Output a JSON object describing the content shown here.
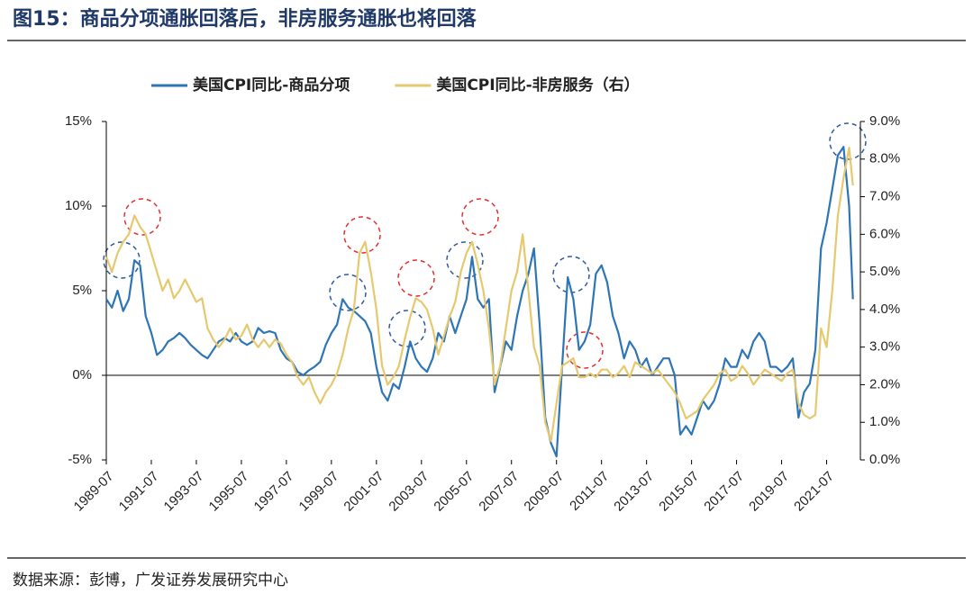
{
  "chart_data": {
    "type": "line",
    "title": "图15：商品分项通胀回落后，非房服务通胀也将回落",
    "source": "数据来源：彭博，广发证券发展研究中心",
    "x": [
      "1989-07",
      "1989-10",
      "1990-01",
      "1990-04",
      "1990-07",
      "1990-10",
      "1991-01",
      "1991-04",
      "1991-07",
      "1991-10",
      "1992-01",
      "1992-04",
      "1992-07",
      "1992-10",
      "1993-01",
      "1993-04",
      "1993-07",
      "1993-10",
      "1994-01",
      "1994-04",
      "1994-07",
      "1994-10",
      "1995-01",
      "1995-04",
      "1995-07",
      "1995-10",
      "1996-01",
      "1996-04",
      "1996-07",
      "1996-10",
      "1997-01",
      "1997-04",
      "1997-07",
      "1997-10",
      "1998-01",
      "1998-04",
      "1998-07",
      "1998-10",
      "1999-01",
      "1999-04",
      "1999-07",
      "1999-10",
      "2000-01",
      "2000-04",
      "2000-07",
      "2000-10",
      "2001-01",
      "2001-04",
      "2001-07",
      "2001-10",
      "2002-01",
      "2002-04",
      "2002-07",
      "2002-10",
      "2003-01",
      "2003-04",
      "2003-07",
      "2003-10",
      "2004-01",
      "2004-04",
      "2004-07",
      "2004-10",
      "2005-01",
      "2005-04",
      "2005-07",
      "2005-10",
      "2006-01",
      "2006-04",
      "2006-07",
      "2006-10",
      "2007-01",
      "2007-04",
      "2007-07",
      "2007-10",
      "2008-01",
      "2008-04",
      "2008-07",
      "2008-10",
      "2009-01",
      "2009-04",
      "2009-07",
      "2009-10",
      "2010-01",
      "2010-04",
      "2010-07",
      "2010-10",
      "2011-01",
      "2011-04",
      "2011-07",
      "2011-10",
      "2012-01",
      "2012-04",
      "2012-07",
      "2012-10",
      "2013-01",
      "2013-04",
      "2013-07",
      "2013-10",
      "2014-01",
      "2014-04",
      "2014-07",
      "2014-10",
      "2015-01",
      "2015-04",
      "2015-07",
      "2015-10",
      "2016-01",
      "2016-04",
      "2016-07",
      "2016-10",
      "2017-01",
      "2017-04",
      "2017-07",
      "2017-10",
      "2018-01",
      "2018-04",
      "2018-07",
      "2018-10",
      "2019-01",
      "2019-04",
      "2019-07",
      "2019-10",
      "2020-01",
      "2020-04",
      "2020-07",
      "2020-10",
      "2021-01",
      "2021-04",
      "2021-07",
      "2021-10",
      "2022-01",
      "2022-04",
      "2022-07",
      "2022-09"
    ],
    "series": [
      {
        "name": "美国CPI同比-商品分项",
        "color": "#2e75b6",
        "axis": "y",
        "values": [
          4.5,
          4.0,
          5.0,
          3.8,
          4.5,
          6.8,
          6.5,
          3.5,
          2.5,
          1.2,
          1.5,
          2.0,
          2.2,
          2.5,
          2.2,
          1.8,
          1.5,
          1.2,
          1.0,
          1.5,
          2.0,
          2.2,
          2.0,
          2.5,
          2.0,
          1.8,
          2.0,
          2.8,
          2.5,
          2.6,
          2.5,
          1.5,
          1.0,
          0.8,
          0.2,
          0.0,
          0.3,
          0.5,
          0.8,
          1.8,
          2.5,
          3.0,
          4.5,
          4.0,
          3.8,
          3.5,
          3.2,
          2.5,
          0.5,
          -1.0,
          -1.5,
          -0.5,
          -0.8,
          0.5,
          2.0,
          1.0,
          0.5,
          0.2,
          1.0,
          2.5,
          2.0,
          3.5,
          2.5,
          3.5,
          4.5,
          7.0,
          4.5,
          4.0,
          4.5,
          -1.0,
          0.5,
          2.0,
          1.5,
          3.5,
          5.0,
          6.0,
          7.5,
          3.0,
          -2.5,
          -4.0,
          -4.8,
          0.5,
          5.8,
          4.5,
          1.5,
          2.0,
          3.0,
          6.0,
          6.5,
          5.5,
          3.5,
          2.5,
          1.0,
          2.0,
          1.5,
          0.5,
          1.0,
          0.0,
          0.5,
          1.0,
          1.0,
          0.0,
          -3.5,
          -3.0,
          -3.5,
          -2.5,
          -1.5,
          -2.0,
          -1.5,
          -0.5,
          1.0,
          0.5,
          0.5,
          1.5,
          1.0,
          2.0,
          2.5,
          2.0,
          0.5,
          0.5,
          0.2,
          0.5,
          1.0,
          -2.5,
          -1.0,
          -0.5,
          1.5,
          7.5,
          9.0,
          11.0,
          13.0,
          13.5,
          10.0,
          4.5
        ]
      },
      {
        "name": "美国CPI同比-非房服务（右）",
        "color": "#e6c86e",
        "axis": "y2",
        "values": [
          5.4,
          5.0,
          5.5,
          5.8,
          6.0,
          6.5,
          6.2,
          6.0,
          5.5,
          5.0,
          4.5,
          4.8,
          4.3,
          4.5,
          4.8,
          4.5,
          4.2,
          4.3,
          3.5,
          3.2,
          3.0,
          3.2,
          3.5,
          3.2,
          3.3,
          3.6,
          3.2,
          3.0,
          3.2,
          3.0,
          3.2,
          3.1,
          2.8,
          2.6,
          2.2,
          2.0,
          2.2,
          1.8,
          1.5,
          1.8,
          2.0,
          2.3,
          2.8,
          3.5,
          4.0,
          5.5,
          5.8,
          5.0,
          4.0,
          2.5,
          2.0,
          2.2,
          2.5,
          3.2,
          3.8,
          4.3,
          4.2,
          4.0,
          3.5,
          2.8,
          3.3,
          3.8,
          4.2,
          5.0,
          5.5,
          5.8,
          5.2,
          4.5,
          3.5,
          2.0,
          2.5,
          3.5,
          4.5,
          5.0,
          6.0,
          4.5,
          3.0,
          2.5,
          1.0,
          0.5,
          1.5,
          2.5,
          2.6,
          2.7,
          2.2,
          2.2,
          2.3,
          2.2,
          2.4,
          2.4,
          2.2,
          2.3,
          2.5,
          2.2,
          2.6,
          2.5,
          2.4,
          2.3,
          2.4,
          2.2,
          2.0,
          1.8,
          1.5,
          1.1,
          1.2,
          1.3,
          1.6,
          1.8,
          2.0,
          2.3,
          2.4,
          2.1,
          2.2,
          2.5,
          2.3,
          2.0,
          2.2,
          2.4,
          2.3,
          2.2,
          2.1,
          2.3,
          2.4,
          1.5,
          1.2,
          1.1,
          1.2,
          3.5,
          3.0,
          4.5,
          6.5,
          7.5,
          8.3,
          7.3
        ]
      }
    ],
    "xlim": [
      "1989-07",
      "2023-01"
    ],
    "xticks": [
      "1989-07",
      "1991-07",
      "1993-07",
      "1995-07",
      "1997-07",
      "1999-07",
      "2001-07",
      "2003-07",
      "2005-07",
      "2007-07",
      "2009-07",
      "2011-07",
      "2013-07",
      "2015-07",
      "2017-07",
      "2019-07",
      "2021-07"
    ],
    "ylim": [
      -5,
      15
    ],
    "yticks": [
      {
        "value": -5,
        "label": "-5%"
      },
      {
        "value": 0,
        "label": "0%"
      },
      {
        "value": 5,
        "label": "5%"
      },
      {
        "value": 10,
        "label": "10%"
      },
      {
        "value": 15,
        "label": "15%"
      }
    ],
    "y2lim": [
      0,
      9
    ],
    "y2ticks": [
      {
        "value": 0,
        "label": "0.0%"
      },
      {
        "value": 1,
        "label": "1.0%"
      },
      {
        "value": 2,
        "label": "2.0%"
      },
      {
        "value": 3,
        "label": "3.0%"
      },
      {
        "value": 4,
        "label": "4.0%"
      },
      {
        "value": 5,
        "label": "5.0%"
      },
      {
        "value": 6,
        "label": "6.0%"
      },
      {
        "value": 7,
        "label": "7.0%"
      },
      {
        "value": 8,
        "label": "8.0%"
      },
      {
        "value": 9,
        "label": "9.0%"
      }
    ],
    "legend": "top"
  }
}
